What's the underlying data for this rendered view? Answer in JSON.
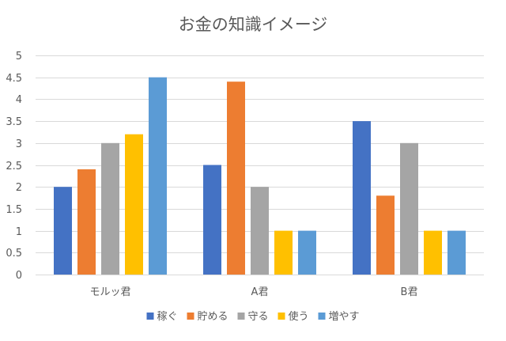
{
  "chart_data": {
    "type": "bar",
    "title": "お金の知識イメージ",
    "xlabel": "",
    "ylabel": "",
    "ylim": [
      0,
      5
    ],
    "yticks": [
      0,
      0.5,
      1,
      1.5,
      2,
      2.5,
      3,
      3.5,
      4,
      4.5,
      5
    ],
    "ytick_labels": [
      "0",
      "0.5",
      "1",
      "1.5",
      "2",
      "2.5",
      "3",
      "3.5",
      "4",
      "4.5",
      "5"
    ],
    "grid": true,
    "legend_position": "bottom",
    "categories": [
      "モルッ君",
      "A君",
      "B君"
    ],
    "series": [
      {
        "name": "稼ぐ",
        "color": "#4472C4",
        "values": [
          2,
          2.5,
          3.5
        ]
      },
      {
        "name": "貯める",
        "color": "#ED7D31",
        "values": [
          2.4,
          4.4,
          1.8
        ]
      },
      {
        "name": "守る",
        "color": "#A5A5A5",
        "values": [
          3,
          2,
          3
        ]
      },
      {
        "name": "使う",
        "color": "#FFC000",
        "values": [
          3.2,
          1,
          1
        ]
      },
      {
        "name": "増やす",
        "color": "#5B9BD5",
        "values": [
          4.5,
          1,
          1
        ]
      }
    ]
  }
}
